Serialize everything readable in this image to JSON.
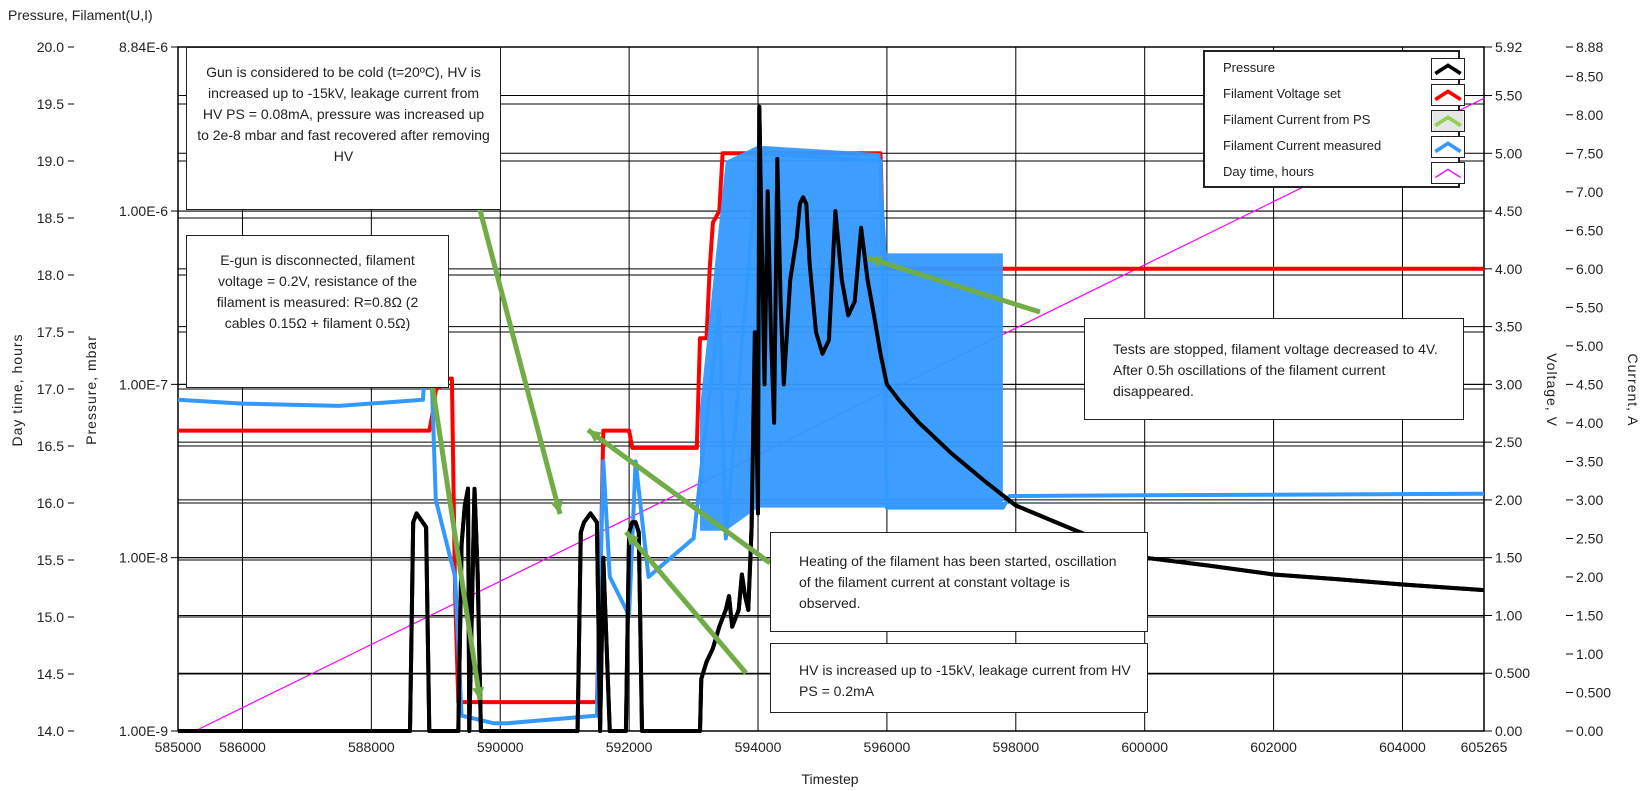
{
  "chart_data": {
    "type": "line",
    "top_title": "Pressure, Filament(U,I)",
    "xlabel": "Timestep",
    "x_ticks": [
      "585000",
      "586000",
      "588000",
      "590000",
      "592000",
      "594000",
      "596000",
      "598000",
      "600000",
      "602000",
      "604000",
      "605265"
    ],
    "x_range": [
      585000,
      605265
    ],
    "axes": {
      "day_time": {
        "label": "Day time, hours",
        "ticks": [
          "20.0",
          "19.5",
          "19.0",
          "18.5",
          "18.0",
          "17.5",
          "17.0",
          "16.5",
          "16.0",
          "15.5",
          "15.0",
          "14.5",
          "14.0"
        ],
        "range": [
          14.0,
          20.0
        ]
      },
      "pressure": {
        "label": "Pressure, mbar",
        "scale": "log",
        "ticks": [
          "8.84E-6",
          "1.00E-6",
          "1.00E-7",
          "1.00E-8",
          "1.00E-9"
        ],
        "range": [
          1e-09,
          8.84e-06
        ]
      },
      "voltage": {
        "label": "Voltage, V",
        "ticks": [
          "5.92",
          "5.50",
          "5.00",
          "4.50",
          "4.00",
          "3.50",
          "3.00",
          "2.50",
          "2.00",
          "1.50",
          "1.00",
          "0.500",
          "0.00"
        ],
        "range": [
          0,
          5.92
        ]
      },
      "current": {
        "label": "Current, A",
        "ticks": [
          "8.88",
          "8.50",
          "8.00",
          "7.50",
          "7.00",
          "6.50",
          "6.00",
          "5.50",
          "5.00",
          "4.50",
          "4.00",
          "3.50",
          "3.00",
          "2.50",
          "2.00",
          "1.50",
          "1.00",
          "0.500",
          "0.00"
        ],
        "range": [
          0,
          8.88
        ]
      }
    },
    "series": [
      {
        "name": "Pressure",
        "axis": "pressure",
        "color": "#000000",
        "x": [
          585000,
          588600,
          588650,
          588700,
          588850,
          588900,
          589350,
          589400,
          589450,
          589500,
          589520,
          589600,
          589650,
          589700,
          591200,
          591250,
          591300,
          591400,
          591500,
          591550,
          591600,
          591700,
          591800,
          591950,
          592000,
          592050,
          592100,
          592150,
          592200,
          592300,
          592400,
          593100,
          593120,
          593200,
          593300,
          593400,
          593500,
          593550,
          593600,
          593700,
          593750,
          593800,
          593850,
          593900,
          593950,
          594000,
          594020,
          594050,
          594100,
          594150,
          594200,
          594250,
          594300,
          594350,
          594400,
          594450,
          594500,
          594600,
          594650,
          594700,
          594750,
          594800,
          594900,
          595000,
          595100,
          595200,
          595300,
          595400,
          595500,
          595600,
          595700,
          595800,
          595900,
          596000,
          596200,
          596500,
          597000,
          597500,
          598000,
          599000,
          600000,
          601000,
          602000,
          603000,
          604000,
          605265
        ],
        "values": [
          1e-09,
          1e-09,
          1.6e-08,
          1.8e-08,
          1.5e-08,
          1e-09,
          1e-09,
          1.2e-08,
          2e-08,
          2.5e-08,
          1e-09,
          2.5e-08,
          8e-09,
          1e-09,
          1e-09,
          1.4e-08,
          1.6e-08,
          1.8e-08,
          1.6e-08,
          1e-09,
          1e-08,
          1e-09,
          1e-09,
          1e-09,
          1.4e-08,
          1.6e-08,
          1.6e-08,
          1.4e-08,
          1e-09,
          1e-09,
          1e-09,
          1e-09,
          2e-09,
          2.5e-09,
          3e-09,
          4e-09,
          5e-09,
          6e-09,
          4e-09,
          5e-09,
          8e-09,
          6e-09,
          5e-09,
          1.5e-08,
          2e-07,
          1.8e-08,
          4e-06,
          1e-06,
          1e-07,
          1.3e-06,
          2e-07,
          6e-08,
          2e-06,
          3e-07,
          1e-07,
          2e-07,
          4e-07,
          7e-07,
          1.1e-06,
          1.2e-06,
          1.1e-06,
          5e-07,
          2e-07,
          1.5e-07,
          1.8e-07,
          1e-06,
          4e-07,
          2.5e-07,
          3e-07,
          8e-07,
          4e-07,
          2.5e-07,
          1.5e-07,
          1e-07,
          8e-08,
          6e-08,
          4e-08,
          2.8e-08,
          2e-08,
          1.4e-08,
          1e-08,
          9e-09,
          8e-09,
          7.5e-09,
          7e-09,
          6.5e-09
        ]
      },
      {
        "name": "Filament Voltage set",
        "axis": "voltage",
        "color": "#ff0000",
        "x": [
          585000,
          588900,
          588950,
          589000,
          589200,
          589250,
          589300,
          589350,
          591500,
          591550,
          591600,
          592000,
          592050,
          592600,
          592650,
          593050,
          593100,
          593200,
          593250,
          593300,
          593400,
          593450,
          595900,
          595950,
          605265
        ],
        "values": [
          2.6,
          2.6,
          2.75,
          2.95,
          3.05,
          3.05,
          1.2,
          0.25,
          0.25,
          1.2,
          2.6,
          2.6,
          2.45,
          2.45,
          2.45,
          2.45,
          3.4,
          3.4,
          4.0,
          4.4,
          4.5,
          5.0,
          5.0,
          4.0,
          4.0
        ]
      },
      {
        "name": "Filament Current from PS",
        "axis": "current",
        "color": "#92d050",
        "x": [],
        "values": []
      },
      {
        "name": "Filament Current measured",
        "axis": "current",
        "color": "#3399ff",
        "x": [
          585000,
          586000,
          587500,
          588800,
          588900,
          589000,
          589300,
          589400,
          589900,
          590100,
          591500,
          591600,
          591700,
          592000,
          592100,
          592300,
          593000,
          593400,
          593500,
          594000,
          595900,
          596000,
          597800,
          597900,
          600000,
          605265
        ],
        "values": [
          4.3,
          4.25,
          4.22,
          4.3,
          5.5,
          3.0,
          2.0,
          0.2,
          0.1,
          0.1,
          0.2,
          3.5,
          2.0,
          1.5,
          3.5,
          2.0,
          2.5,
          5.5,
          2.5,
          7.5,
          7.4,
          2.9,
          2.9,
          3.05,
          3.06,
          3.08
        ]
      },
      {
        "name": "Day time, hours",
        "axis": "day_time",
        "color": "#ff00ff",
        "x": [
          585265,
          605265
        ],
        "values": [
          14.0,
          19.55
        ]
      }
    ],
    "legend_position": "top-right",
    "grid": true
  },
  "legend": [
    {
      "label": "Pressure",
      "color": "#000000"
    },
    {
      "label": "Filament Voltage set",
      "color": "#ff0000"
    },
    {
      "label": "Filament Current from PS",
      "color": "#92d050"
    },
    {
      "label": "Filament Current measured",
      "color": "#3399ff"
    },
    {
      "label": "Day time, hours",
      "color": "#ff00ff"
    }
  ],
  "annotations": {
    "cold_gun": "Gun is considered to be cold (t=20ºC), HV is increased up to -15kV, leakage current from HV PS = 0.08mA, pressure was increased up to 2e-8 mbar and fast recovered after removing HV",
    "disconnected": "E-gun is disconnected, filament voltage = 0.2V, resistance of the filament is measured: R=0.8Ω (2 cables 0.15Ω + filament 0.5Ω)",
    "stopped": "Tests are stopped, filament voltage decreased to 4V. After 0.5h oscillations of the filament current disappeared.",
    "heating": "Heating of the filament has been started, oscillation of the filament current at constant voltage is observed.",
    "hv": "HV is increased up to -15kV, leakage current from HV PS = 0.2mA"
  }
}
